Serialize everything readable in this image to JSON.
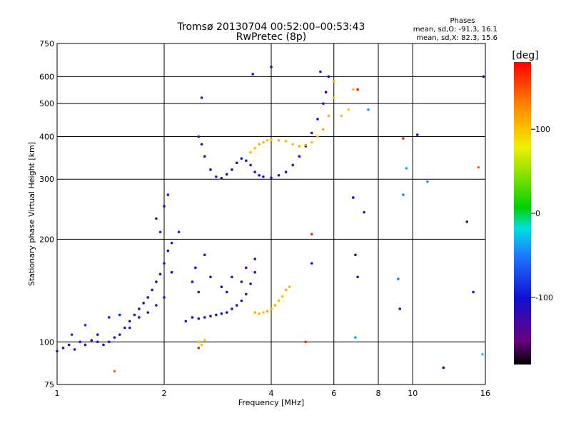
{
  "chart_data": {
    "type": "scatter",
    "title": "Tromsø 20130704 00:52:00–00:53:43",
    "subtitle": "RwPretec (8p)",
    "xlabel": "Frequency [MHz]",
    "ylabel": "Stationary phase Virtual Height [km]",
    "x_scale": "log",
    "y_scale": "log",
    "xlim": [
      1,
      16
    ],
    "ylim": [
      75,
      750
    ],
    "x_ticks": [
      1,
      2,
      4,
      6,
      8,
      10,
      16
    ],
    "x_tick_labels": [
      "1",
      "2",
      "4",
      "6",
      "8",
      "10",
      "16"
    ],
    "y_ticks": [
      75,
      100,
      200,
      300,
      400,
      500,
      600,
      750
    ],
    "y_tick_labels": [
      "75",
      "100",
      "200",
      "300",
      "400",
      "500",
      "600",
      "750"
    ],
    "grid": true,
    "phases_box": {
      "title": "Phases",
      "line_o": "mean, sd,O: -91.3, 16.1",
      "line_x": "mean, sd,X:  82.3, 15.6"
    },
    "colorbar": {
      "label": "[deg]",
      "range": [
        -180,
        180
      ],
      "ticks": [
        100,
        0,
        -100
      ],
      "tick_labels": [
        "100",
        "0",
        "-100"
      ]
    },
    "series": [
      {
        "points": [
          [
            1.0,
            94,
            -110
          ],
          [
            1.04,
            96,
            -105
          ],
          [
            1.08,
            98,
            -100
          ],
          [
            1.12,
            95,
            -108
          ],
          [
            1.16,
            100,
            -95
          ],
          [
            1.2,
            98,
            -112
          ],
          [
            1.25,
            101,
            -104
          ],
          [
            1.3,
            100,
            -100
          ],
          [
            1.35,
            98,
            -110
          ],
          [
            1.4,
            100,
            -102
          ],
          [
            1.45,
            103,
            -98
          ],
          [
            1.5,
            105,
            -100
          ],
          [
            1.55,
            110,
            -105
          ],
          [
            1.6,
            115,
            -100
          ],
          [
            1.65,
            120,
            -110
          ],
          [
            1.7,
            125,
            -105
          ],
          [
            1.75,
            130,
            -100
          ],
          [
            1.8,
            135,
            -112
          ],
          [
            1.85,
            142,
            -108
          ],
          [
            1.9,
            150,
            -100
          ],
          [
            1.95,
            158,
            -105
          ],
          [
            2.0,
            170,
            -110
          ],
          [
            2.05,
            185,
            -100
          ],
          [
            2.1,
            195,
            -95
          ],
          [
            2.2,
            210,
            -90
          ],
          [
            1.6,
            110,
            -95
          ],
          [
            1.7,
            118,
            -100
          ],
          [
            1.8,
            122,
            -105
          ],
          [
            1.9,
            128,
            -110
          ],
          [
            2.0,
            135,
            -100
          ],
          [
            1.5,
            120,
            -90
          ],
          [
            1.4,
            118,
            -95
          ],
          [
            1.3,
            105,
            -100
          ],
          [
            1.2,
            112,
            -85
          ],
          [
            1.1,
            105,
            -90
          ],
          [
            1.9,
            230,
            -100
          ],
          [
            2.0,
            250,
            -105
          ],
          [
            2.05,
            270,
            -95
          ],
          [
            1.95,
            210,
            -110
          ],
          [
            2.1,
            160,
            -100
          ]
        ]
      },
      {
        "points": [
          [
            2.3,
            115,
            -100
          ],
          [
            2.4,
            118,
            -105
          ],
          [
            2.5,
            117,
            -110
          ],
          [
            2.6,
            118,
            -100
          ],
          [
            2.7,
            119,
            -105
          ],
          [
            2.8,
            120,
            -110
          ],
          [
            2.9,
            121,
            -100
          ],
          [
            3.0,
            122,
            -105
          ],
          [
            3.1,
            125,
            -110
          ],
          [
            3.2,
            128,
            -120
          ],
          [
            3.3,
            132,
            -125
          ],
          [
            3.4,
            138,
            -130
          ],
          [
            3.5,
            148,
            -120
          ],
          [
            3.6,
            160,
            -125
          ],
          [
            3.3,
            150,
            -130
          ],
          [
            3.4,
            165,
            -135
          ],
          [
            3.0,
            140,
            -120
          ],
          [
            3.1,
            155,
            -125
          ],
          [
            2.9,
            145,
            -110
          ],
          [
            2.7,
            155,
            -105
          ],
          [
            2.5,
            140,
            -100
          ],
          [
            2.4,
            150,
            -105
          ],
          [
            2.6,
            180,
            -100
          ],
          [
            2.45,
            165,
            -110
          ],
          [
            3.6,
            175,
            -130
          ]
        ]
      },
      {
        "points": [
          [
            3.6,
            122,
            110
          ],
          [
            3.7,
            121,
            105
          ],
          [
            3.8,
            122,
            100
          ],
          [
            3.9,
            123,
            112
          ],
          [
            4.0,
            125,
            108
          ],
          [
            4.1,
            128,
            110
          ],
          [
            4.2,
            132,
            105
          ],
          [
            4.3,
            136,
            100
          ],
          [
            4.4,
            142,
            110
          ],
          [
            4.5,
            145,
            105
          ],
          [
            2.5,
            100,
            110
          ],
          [
            2.6,
            101,
            105
          ],
          [
            2.55,
            98,
            100
          ]
        ]
      },
      {
        "points": [
          [
            2.5,
            400,
            -100
          ],
          [
            2.55,
            380,
            -105
          ],
          [
            2.6,
            350,
            -110
          ],
          [
            2.7,
            320,
            -100
          ],
          [
            2.8,
            305,
            -95
          ],
          [
            2.9,
            302,
            -100
          ],
          [
            3.0,
            310,
            -105
          ],
          [
            3.1,
            320,
            -110
          ],
          [
            3.2,
            335,
            -105
          ],
          [
            3.3,
            345,
            -100
          ],
          [
            3.4,
            340,
            -110
          ],
          [
            3.5,
            330,
            -115
          ],
          [
            3.6,
            315,
            -120
          ],
          [
            3.7,
            308,
            -110
          ],
          [
            3.8,
            305,
            -100
          ],
          [
            4.0,
            303,
            -105
          ],
          [
            4.2,
            308,
            -110
          ],
          [
            4.4,
            315,
            -100
          ],
          [
            4.6,
            330,
            -105
          ],
          [
            4.8,
            350,
            -110
          ],
          [
            5.0,
            375,
            -100
          ],
          [
            5.2,
            410,
            -105
          ],
          [
            5.4,
            450,
            -110
          ],
          [
            5.6,
            500,
            -100
          ],
          [
            5.7,
            540,
            -105
          ],
          [
            5.8,
            600,
            -100
          ],
          [
            2.55,
            520,
            -95
          ],
          [
            3.55,
            610,
            -100
          ],
          [
            4.0,
            640,
            -100
          ],
          [
            5.5,
            620,
            -100
          ]
        ]
      },
      {
        "points": [
          [
            3.5,
            360,
            105
          ],
          [
            3.6,
            370,
            100
          ],
          [
            3.7,
            380,
            110
          ],
          [
            3.8,
            385,
            108
          ],
          [
            3.9,
            390,
            105
          ],
          [
            4.0,
            392,
            100
          ],
          [
            4.2,
            390,
            110
          ],
          [
            4.4,
            388,
            105
          ],
          [
            4.6,
            380,
            100
          ],
          [
            4.8,
            375,
            108
          ],
          [
            5.0,
            378,
            110
          ],
          [
            5.2,
            385,
            105
          ],
          [
            5.4,
            400,
            100
          ],
          [
            5.6,
            420,
            110
          ],
          [
            5.8,
            460,
            105
          ],
          [
            6.0,
            520,
            100
          ],
          [
            6.0,
            580,
            110
          ],
          [
            6.3,
            460,
            100
          ],
          [
            6.6,
            480,
            95
          ],
          [
            6.8,
            550,
            100
          ]
        ]
      },
      {
        "points": [
          [
            6.8,
            265,
            -100
          ],
          [
            7.3,
            240,
            -130
          ],
          [
            6.9,
            180,
            -110
          ],
          [
            5.2,
            170,
            -105
          ],
          [
            7.0,
            155,
            -95
          ],
          [
            9.2,
            125,
            -120
          ],
          [
            12.2,
            84,
            -160
          ],
          [
            14.2,
            225,
            -100
          ],
          [
            14.8,
            140,
            -110
          ],
          [
            10.3,
            405,
            -105
          ],
          [
            9.4,
            395,
            170
          ],
          [
            7.0,
            550,
            175
          ],
          [
            5.2,
            207,
            165
          ],
          [
            5.0,
            100,
            170
          ],
          [
            2.5,
            96,
            170
          ],
          [
            6.9,
            103,
            -40
          ],
          [
            9.1,
            153,
            -50
          ],
          [
            9.4,
            270,
            -45
          ],
          [
            9.6,
            323,
            -35
          ],
          [
            11.0,
            295,
            -40
          ],
          [
            7.5,
            480,
            -40
          ],
          [
            15.3,
            325,
            140
          ],
          [
            15.8,
            600,
            -100
          ],
          [
            15.7,
            92,
            -20
          ],
          [
            1.45,
            82,
            140
          ]
        ]
      }
    ]
  }
}
